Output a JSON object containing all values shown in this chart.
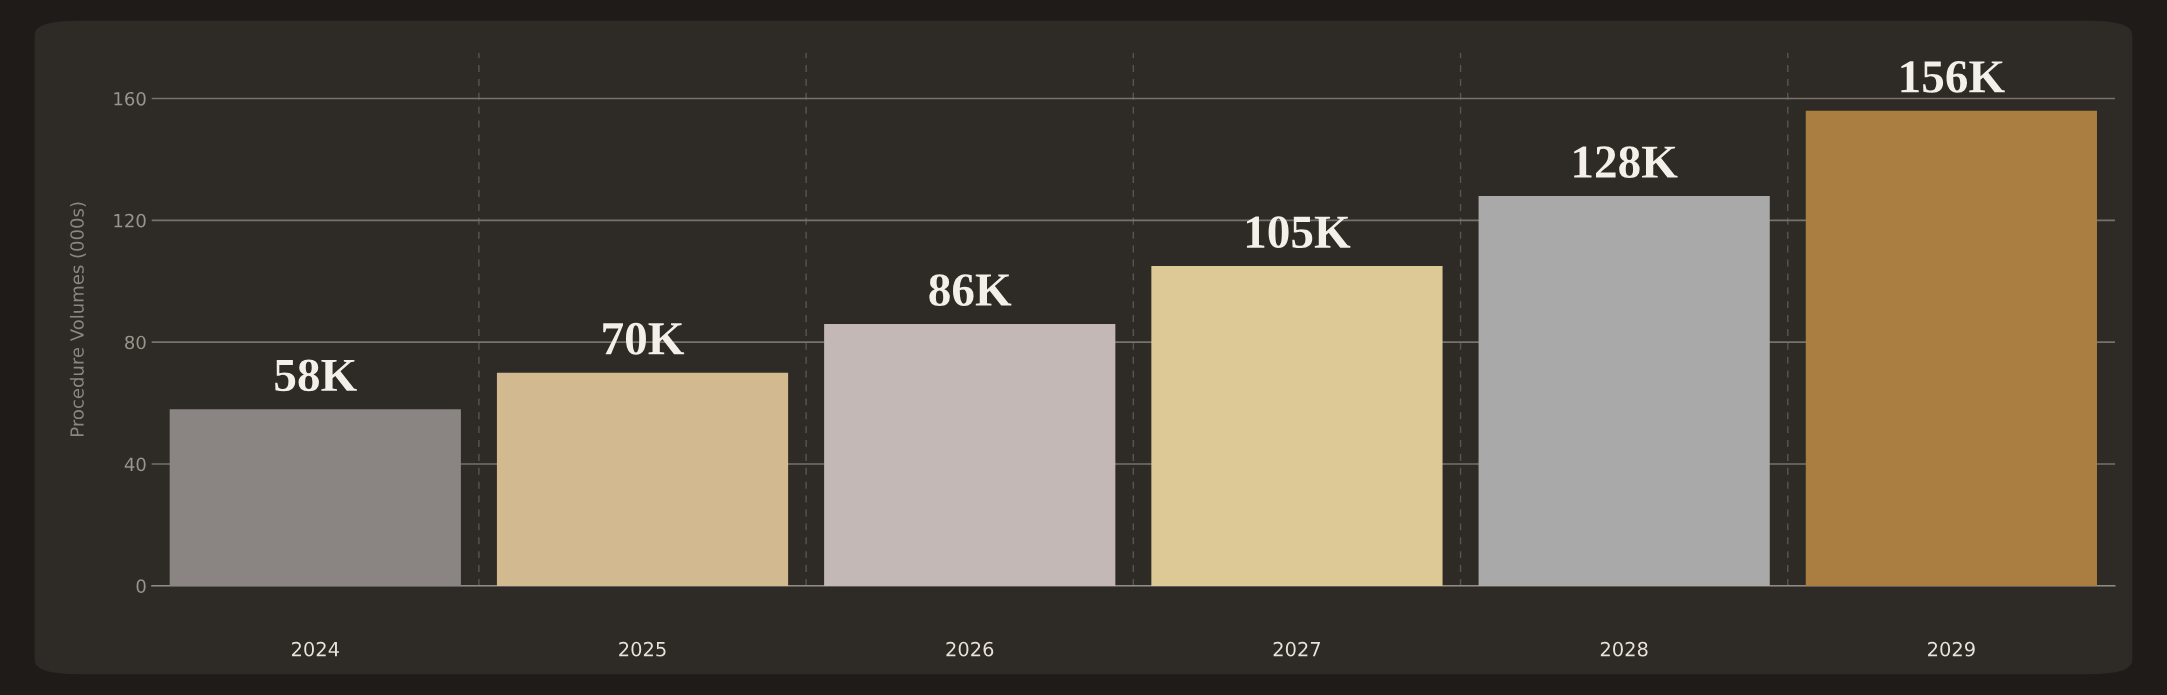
{
  "chart_data": {
    "type": "bar",
    "ylabel": "Procedure Volumes (000s)",
    "categories": [
      "2024",
      "2025",
      "2026",
      "2027",
      "2028",
      "2029"
    ],
    "values": [
      58,
      70,
      86,
      105,
      128,
      156
    ],
    "value_labels": [
      "58K",
      "70K",
      "86K",
      "105K",
      "128K",
      "156K"
    ],
    "colors": [
      "#8a8582",
      "#d2b990",
      "#c4b8b6",
      "#dcc995",
      "#a9a9a9",
      "#aa7d40"
    ],
    "ylim": [
      0,
      175
    ],
    "yticks": [
      0,
      40,
      80,
      120,
      160
    ],
    "grid": true
  }
}
